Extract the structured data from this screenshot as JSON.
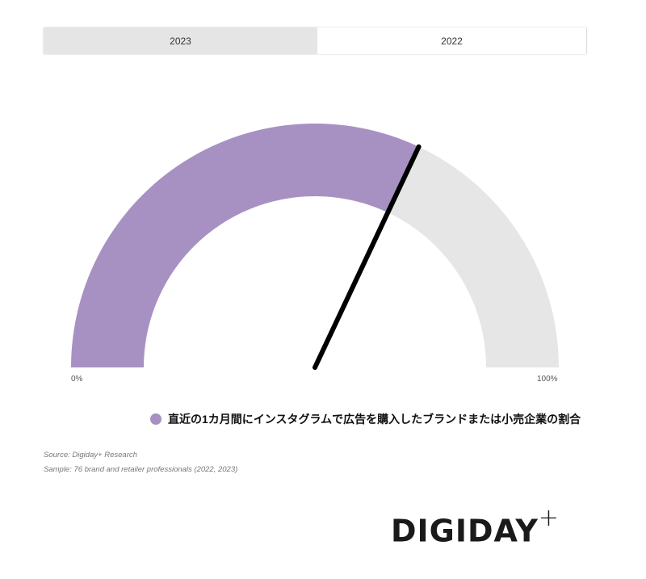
{
  "tabs": [
    {
      "label": "2023",
      "active": false
    },
    {
      "label": "2022",
      "active": true
    }
  ],
  "chart_data": {
    "type": "gauge",
    "value": 64,
    "min": 0,
    "max": 100,
    "min_label": "0%",
    "max_label": "100%",
    "series": [
      {
        "name": "直近の1カ月間にインスタグラムで広告を購入したブランドまたは小売企業の割合",
        "value": 64
      }
    ],
    "colors": {
      "fill": "#a791c2",
      "track": "#e6e6e6",
      "needle": "#000000"
    }
  },
  "source": "Source: Digiday+ Research",
  "sample": "Sample: 76 brand and retailer professionals (2022, 2023)",
  "logo": {
    "text": "DIGIDAY",
    "plus": "+"
  }
}
